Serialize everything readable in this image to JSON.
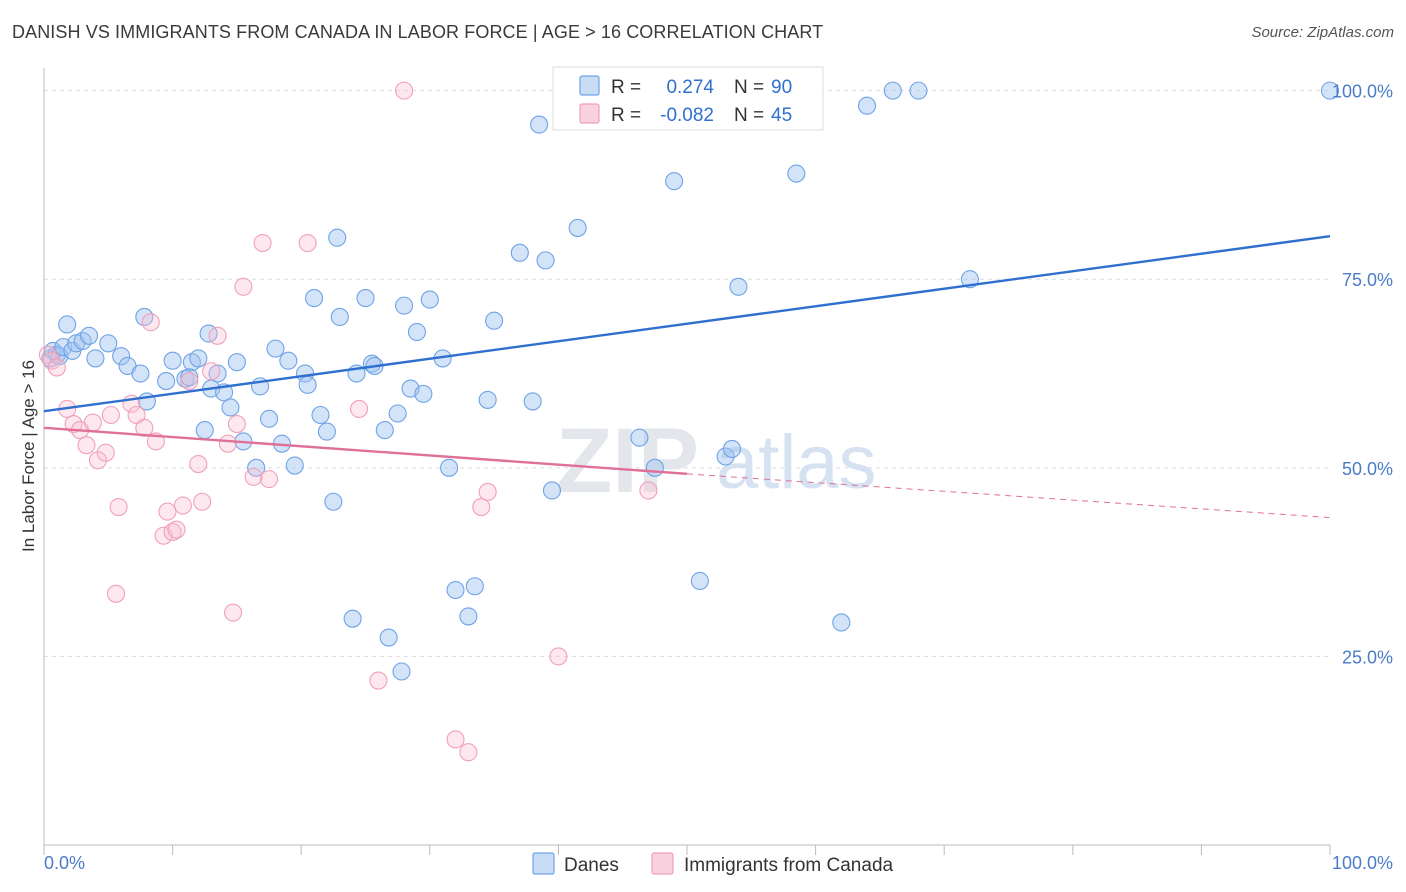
{
  "header": {
    "title": "DANISH VS IMMIGRANTS FROM CANADA IN LABOR FORCE | AGE > 16 CORRELATION CHART",
    "source": "Source: ZipAtlas.com"
  },
  "watermark": {
    "zip": "ZIP",
    "atlas": "atlas"
  },
  "legend_top": {
    "rows": [
      {
        "r_label": "R =",
        "r_value": "0.274",
        "n_label": "N =",
        "n_value": "90",
        "color": "#6fa3e6"
      },
      {
        "r_label": "R =",
        "r_value": "-0.082",
        "n_label": "N =",
        "n_value": "45",
        "color": "#f0a0bb"
      }
    ]
  },
  "legend_bottom": {
    "items": [
      {
        "label": "Danes",
        "color": "#6fa3e6"
      },
      {
        "label": "Immigrants from Canada",
        "color": "#f0a0bb"
      }
    ]
  },
  "chart_data": {
    "type": "scatter",
    "title": "DANISH VS IMMIGRANTS FROM CANADA IN LABOR FORCE | AGE > 16 CORRELATION CHART",
    "xlabel": "",
    "ylabel": "In Labor Force | Age > 16",
    "xlim": [
      0,
      100
    ],
    "ylim": [
      0,
      103
    ],
    "x_tick_labels": [
      "0.0%",
      "100.0%"
    ],
    "y_ticks": [
      25,
      50,
      75,
      100
    ],
    "y_tick_labels": [
      "25.0%",
      "50.0%",
      "75.0%",
      "100.0%"
    ],
    "grid": true,
    "legend": "top-center",
    "series": [
      {
        "name": "Danes",
        "color": "#6fa3e6",
        "trend": {
          "x": [
            0,
            100
          ],
          "y": [
            57.5,
            80.7
          ],
          "dashed_from": null
        },
        "points": [
          [
            0.5,
            64.5
          ],
          [
            0.7,
            65.5
          ],
          [
            1.0,
            65.0
          ],
          [
            1.2,
            64.8
          ],
          [
            1.5,
            66.0
          ],
          [
            1.8,
            69.0
          ],
          [
            2.2,
            65.5
          ],
          [
            2.5,
            66.5
          ],
          [
            3.0,
            66.8
          ],
          [
            3.5,
            67.5
          ],
          [
            4.0,
            64.5
          ],
          [
            5.0,
            66.5
          ],
          [
            6.0,
            64.8
          ],
          [
            6.5,
            63.5
          ],
          [
            7.5,
            62.5
          ],
          [
            8.0,
            58.8
          ],
          [
            7.8,
            70.0
          ],
          [
            9.5,
            61.5
          ],
          [
            10.0,
            64.2
          ],
          [
            11.0,
            61.8
          ],
          [
            11.5,
            64.0
          ],
          [
            11.3,
            62.0
          ],
          [
            12.0,
            64.5
          ],
          [
            12.5,
            55.0
          ],
          [
            12.8,
            67.8
          ],
          [
            13.0,
            60.5
          ],
          [
            13.5,
            62.5
          ],
          [
            14.0,
            60.0
          ],
          [
            14.5,
            58.0
          ],
          [
            15.0,
            64.0
          ],
          [
            15.5,
            53.5
          ],
          [
            16.5,
            50.0
          ],
          [
            16.8,
            60.8
          ],
          [
            17.5,
            56.5
          ],
          [
            18.0,
            65.8
          ],
          [
            18.5,
            53.2
          ],
          [
            19.0,
            64.2
          ],
          [
            19.5,
            50.3
          ],
          [
            20.3,
            62.5
          ],
          [
            20.5,
            61.0
          ],
          [
            21.0,
            72.5
          ],
          [
            21.5,
            57.0
          ],
          [
            22.0,
            54.8
          ],
          [
            22.5,
            45.5
          ],
          [
            22.8,
            80.5
          ],
          [
            23.0,
            70.0
          ],
          [
            24.0,
            30.0
          ],
          [
            24.3,
            62.5
          ],
          [
            25.0,
            72.5
          ],
          [
            25.5,
            63.8
          ],
          [
            25.7,
            63.5
          ],
          [
            26.5,
            55.0
          ],
          [
            26.8,
            27.5
          ],
          [
            27.5,
            57.2
          ],
          [
            27.8,
            23.0
          ],
          [
            28.0,
            71.5
          ],
          [
            28.5,
            60.5
          ],
          [
            29.0,
            68.0
          ],
          [
            29.5,
            59.8
          ],
          [
            30.0,
            72.3
          ],
          [
            31.0,
            64.5
          ],
          [
            31.5,
            50.0
          ],
          [
            32.0,
            33.8
          ],
          [
            33.0,
            30.3
          ],
          [
            33.5,
            34.3
          ],
          [
            34.5,
            59.0
          ],
          [
            35.0,
            69.5
          ],
          [
            37.0,
            78.5
          ],
          [
            38.0,
            58.8
          ],
          [
            38.5,
            95.5
          ],
          [
            39.0,
            77.5
          ],
          [
            39.5,
            47.0
          ],
          [
            41.5,
            81.8
          ],
          [
            43.5,
            100
          ],
          [
            45.5,
            100
          ],
          [
            46.3,
            54.0
          ],
          [
            47.5,
            50.0
          ],
          [
            49.0,
            88.0
          ],
          [
            49.5,
            100
          ],
          [
            51.0,
            35.0
          ],
          [
            52.5,
            100
          ],
          [
            53.0,
            51.5
          ],
          [
            53.5,
            52.5
          ],
          [
            54.0,
            74.0
          ],
          [
            54.5,
            100
          ],
          [
            58.5,
            89.0
          ],
          [
            62.0,
            29.5
          ],
          [
            64.0,
            98.0
          ],
          [
            66.0,
            100
          ],
          [
            68.0,
            100
          ],
          [
            72.0,
            75.0
          ],
          [
            100,
            100
          ]
        ]
      },
      {
        "name": "Immigrants from Canada",
        "color": "#f0a0bb",
        "trend": {
          "x": [
            0,
            50,
            100
          ],
          "y": [
            55.3,
            49.2,
            43.4
          ],
          "dashed_from": 50
        },
        "points": [
          [
            0.3,
            65.0
          ],
          [
            0.6,
            64.2
          ],
          [
            1.0,
            63.3
          ],
          [
            1.8,
            57.8
          ],
          [
            2.3,
            55.8
          ],
          [
            2.8,
            55.0
          ],
          [
            3.3,
            53.0
          ],
          [
            3.8,
            56.0
          ],
          [
            4.2,
            51.0
          ],
          [
            4.8,
            52.0
          ],
          [
            5.2,
            57.0
          ],
          [
            5.8,
            44.8
          ],
          [
            5.6,
            33.3
          ],
          [
            6.8,
            58.5
          ],
          [
            7.2,
            57.0
          ],
          [
            7.8,
            55.3
          ],
          [
            8.3,
            69.3
          ],
          [
            8.7,
            53.5
          ],
          [
            9.3,
            41.0
          ],
          [
            9.6,
            44.2
          ],
          [
            10.0,
            41.5
          ],
          [
            10.3,
            41.8
          ],
          [
            10.8,
            45.0
          ],
          [
            11.3,
            61.5
          ],
          [
            12.0,
            50.5
          ],
          [
            12.3,
            45.5
          ],
          [
            13.0,
            62.8
          ],
          [
            13.5,
            67.5
          ],
          [
            14.3,
            53.2
          ],
          [
            14.7,
            30.8
          ],
          [
            15.0,
            55.8
          ],
          [
            15.5,
            74.0
          ],
          [
            16.3,
            48.8
          ],
          [
            17.0,
            79.8
          ],
          [
            17.5,
            48.5
          ],
          [
            20.5,
            79.8
          ],
          [
            24.5,
            57.8
          ],
          [
            26.0,
            21.8
          ],
          [
            28.0,
            100
          ],
          [
            32.0,
            14.0
          ],
          [
            33.0,
            12.3
          ],
          [
            34.0,
            44.8
          ],
          [
            34.5,
            46.8
          ],
          [
            40.0,
            25.0
          ],
          [
            47.0,
            47.0
          ]
        ]
      }
    ]
  }
}
